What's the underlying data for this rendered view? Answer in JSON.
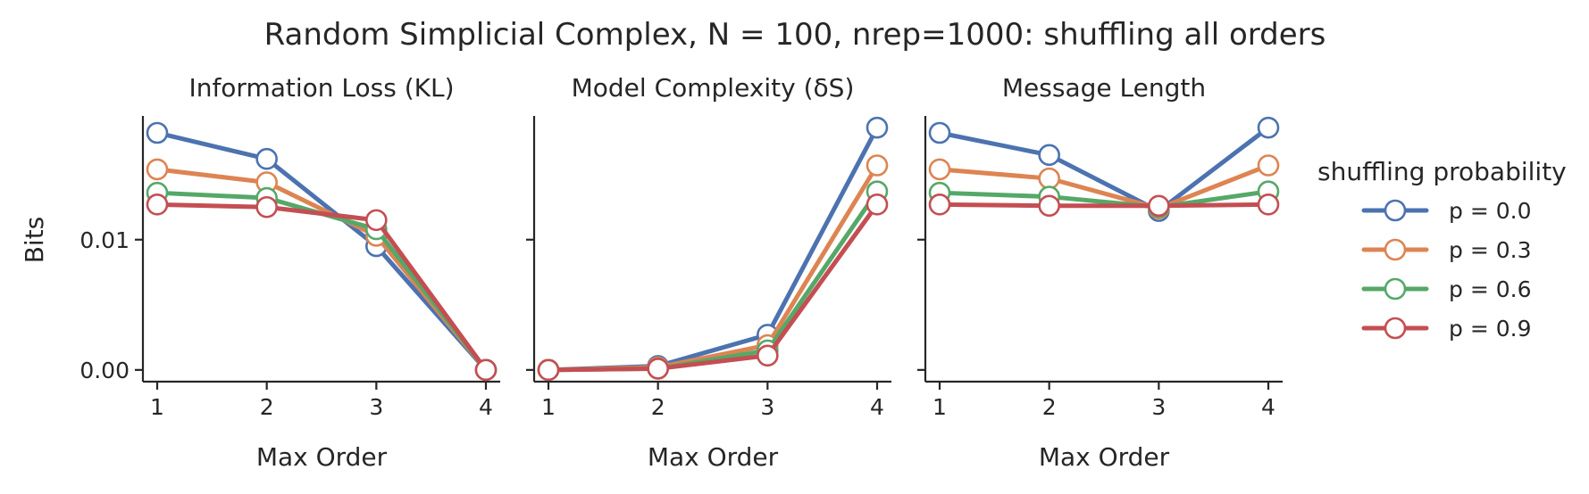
{
  "title": "Random Simplicial Complex, N = 100, nrep=1000: shuffling all orders",
  "ylabel": "Bits",
  "legend": {
    "title": "shuffling probability",
    "placement": "right"
  },
  "colors": {
    "p = 0.0": "#4c72b0",
    "p = 0.3": "#dd8452",
    "p = 0.6": "#55a868",
    "p = 0.9": "#c44e52"
  },
  "chart_data": [
    {
      "type": "line",
      "title": "Information Loss (KL)",
      "xlabel": "Max Order",
      "ylabel": "Bits",
      "x": [
        1,
        2,
        3,
        4
      ],
      "ylim": [
        -0.0009,
        0.0195
      ],
      "yticks": [
        0.0,
        0.01
      ],
      "ytick_labels": [
        "0.00",
        "0.01"
      ],
      "series": [
        {
          "name": "p = 0.0",
          "values": [
            0.0182,
            0.0162,
            0.0095,
            0.0
          ]
        },
        {
          "name": "p = 0.3",
          "values": [
            0.0154,
            0.0144,
            0.0103,
            0.0
          ]
        },
        {
          "name": "p = 0.6",
          "values": [
            0.0136,
            0.0132,
            0.0108,
            0.0
          ]
        },
        {
          "name": "p = 0.9",
          "values": [
            0.0127,
            0.0125,
            0.0115,
            0.0
          ]
        }
      ]
    },
    {
      "type": "line",
      "title": "Model Complexity (δS)",
      "xlabel": "Max Order",
      "x": [
        1,
        2,
        3,
        4
      ],
      "ylim": [
        -0.0009,
        0.0195
      ],
      "yticks": [
        0.0,
        0.01
      ],
      "series": [
        {
          "name": "p = 0.0",
          "values": [
            0.0,
            0.0003,
            0.0027,
            0.0186
          ]
        },
        {
          "name": "p = 0.3",
          "values": [
            0.0,
            0.0002,
            0.0019,
            0.0157
          ]
        },
        {
          "name": "p = 0.6",
          "values": [
            0.0,
            0.0001,
            0.0015,
            0.0137
          ]
        },
        {
          "name": "p = 0.9",
          "values": [
            0.0,
            0.0001,
            0.0011,
            0.0127
          ]
        }
      ]
    },
    {
      "type": "line",
      "title": "Message Length",
      "xlabel": "Max Order",
      "x": [
        1,
        2,
        3,
        4
      ],
      "ylim": [
        -0.0009,
        0.0195
      ],
      "yticks": [
        0.0,
        0.01
      ],
      "series": [
        {
          "name": "p = 0.0",
          "values": [
            0.0182,
            0.0165,
            0.0122,
            0.0186
          ]
        },
        {
          "name": "p = 0.3",
          "values": [
            0.0154,
            0.0147,
            0.0124,
            0.0157
          ]
        },
        {
          "name": "p = 0.6",
          "values": [
            0.0136,
            0.0133,
            0.0125,
            0.0137
          ]
        },
        {
          "name": "p = 0.9",
          "values": [
            0.0127,
            0.0126,
            0.0126,
            0.0127
          ]
        }
      ]
    }
  ]
}
